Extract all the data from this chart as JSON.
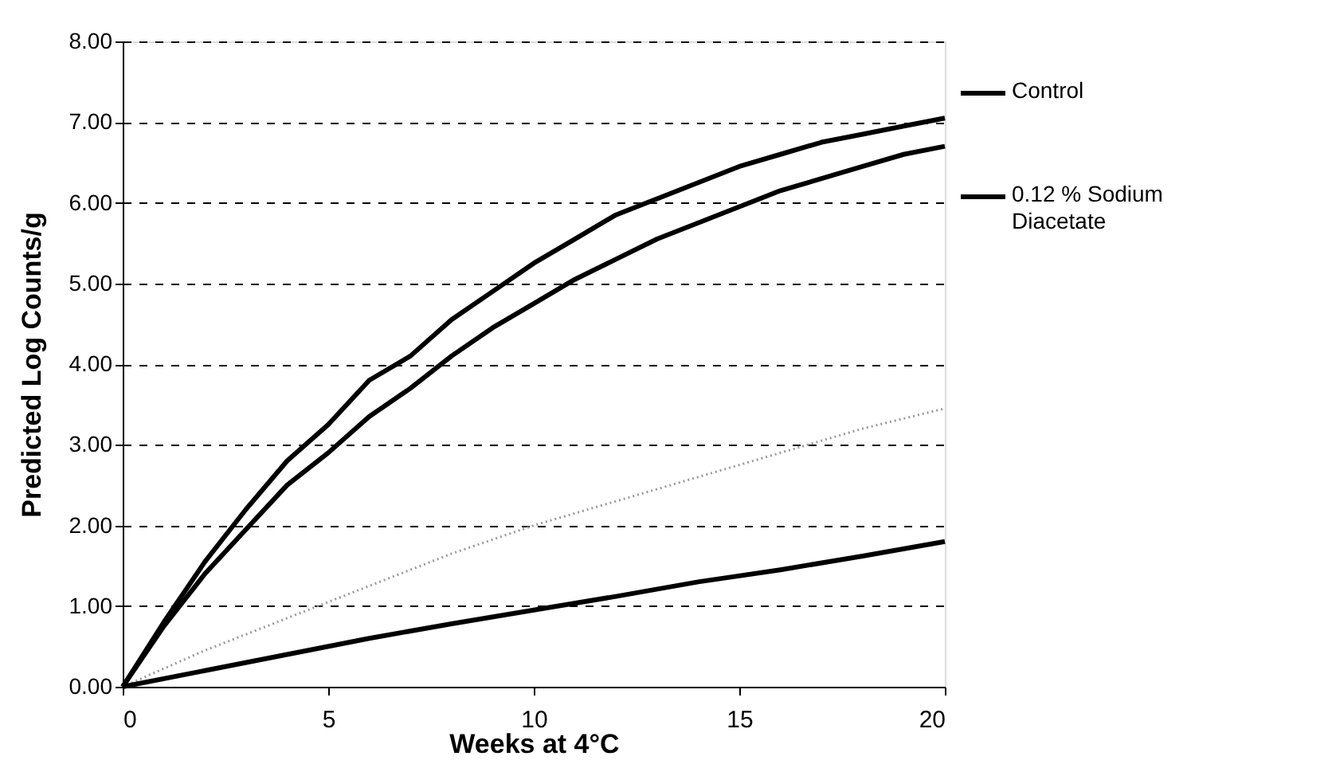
{
  "chart_data": {
    "type": "line",
    "xlabel": "Weeks at 4°C",
    "ylabel": "Predicted Log Counts/g",
    "xlim": [
      0,
      20
    ],
    "xticks": [
      0,
      5,
      10,
      15,
      20
    ],
    "ylim": [
      0,
      8
    ],
    "yticks": [
      {
        "value": 0,
        "label": "0.00"
      },
      {
        "value": 1,
        "label": "1.00"
      },
      {
        "value": 2,
        "label": "2.00"
      },
      {
        "value": 3,
        "label": "3.00"
      },
      {
        "value": 4,
        "label": "4.00"
      },
      {
        "value": 5,
        "label": "5.00"
      },
      {
        "value": 6,
        "label": "6.00"
      },
      {
        "value": 7,
        "label": "7.00"
      },
      {
        "value": 8,
        "label": "8.00"
      }
    ],
    "grid": "y",
    "legend": "right",
    "marker": "none",
    "series": [
      {
        "name": "Control",
        "color": "#000000",
        "line_style": "solid",
        "x": [
          0,
          1,
          2,
          3,
          4,
          5,
          6,
          7,
          8,
          9,
          10,
          11,
          12,
          13,
          14,
          15,
          16,
          17,
          18,
          19,
          20
        ],
        "values": [
          0,
          0.8,
          1.55,
          2.2,
          2.8,
          3.25,
          3.8,
          4.1,
          4.55,
          4.9,
          5.25,
          5.55,
          5.85,
          6.05,
          6.25,
          6.45,
          6.6,
          6.75,
          6.85,
          6.95,
          7.05
        ]
      },
      {
        "name": "0.12 % Sodium Diacetate",
        "color": "#000000",
        "line_style": "solid",
        "x": [
          0,
          1,
          2,
          3,
          4,
          5,
          6,
          7,
          8,
          9,
          10,
          11,
          12,
          13,
          14,
          15,
          16,
          17,
          18,
          19,
          20
        ],
        "values": [
          0,
          0.75,
          1.4,
          1.95,
          2.5,
          2.9,
          3.35,
          3.7,
          4.1,
          4.45,
          4.75,
          5.05,
          5.3,
          5.55,
          5.75,
          5.95,
          6.15,
          6.3,
          6.45,
          6.6,
          6.7
        ]
      },
      {
        "color": "#9a9a9a",
        "line_style": "dotted",
        "x": [
          0,
          2,
          4,
          6,
          8,
          10,
          12,
          14,
          16,
          18,
          20
        ],
        "values": [
          0,
          0.45,
          0.85,
          1.25,
          1.65,
          2.0,
          2.3,
          2.6,
          2.9,
          3.2,
          3.45
        ]
      },
      {
        "color": "#000000",
        "line_style": "solid",
        "x": [
          0,
          2,
          4,
          6,
          8,
          10,
          12,
          14,
          16,
          18,
          20
        ],
        "values": [
          0,
          0.2,
          0.4,
          0.6,
          0.78,
          0.95,
          1.12,
          1.3,
          1.45,
          1.62,
          1.8
        ]
      }
    ]
  }
}
